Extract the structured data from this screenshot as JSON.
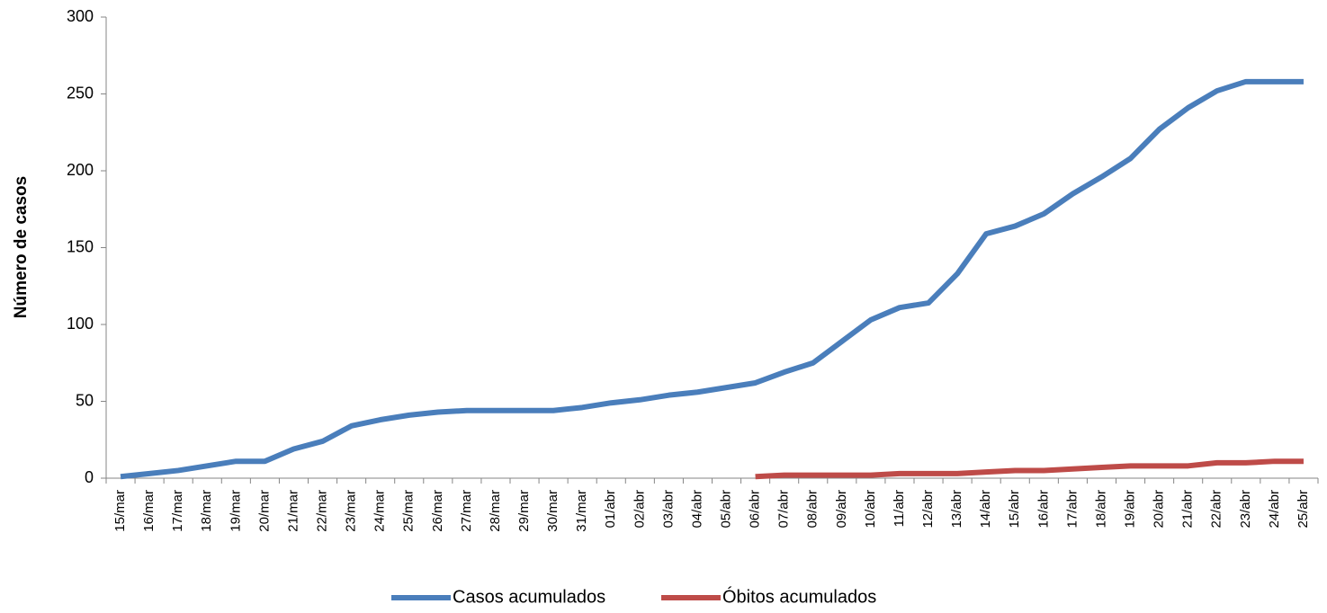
{
  "chart_data": {
    "type": "line",
    "y_label": "Número de casos",
    "categories": [
      "15/mar",
      "16/mar",
      "17/mar",
      "18/mar",
      "19/mar",
      "20/mar",
      "21/mar",
      "22/mar",
      "23/mar",
      "24/mar",
      "25/mar",
      "26/mar",
      "27/mar",
      "28/mar",
      "29/mar",
      "30/mar",
      "31/mar",
      "01/abr",
      "02/abr",
      "03/abr",
      "04/abr",
      "05/abr",
      "06/abr",
      "07/abr",
      "08/abr",
      "09/abr",
      "10/abr",
      "11/abr",
      "12/abr",
      "13/abr",
      "14/abr",
      "15/abr",
      "16/abr",
      "17/abr",
      "18/abr",
      "19/abr",
      "20/abr",
      "21/abr",
      "22/abr",
      "23/abr",
      "24/abr",
      "25/abr"
    ],
    "series": [
      {
        "name": "Casos acumulados",
        "color": "#4a7ebb",
        "values": [
          1,
          3,
          5,
          8,
          11,
          11,
          19,
          24,
          34,
          38,
          41,
          43,
          44,
          44,
          44,
          44,
          46,
          49,
          51,
          54,
          56,
          59,
          62,
          69,
          75,
          89,
          103,
          111,
          114,
          133,
          159,
          164,
          172,
          185,
          196,
          208,
          227,
          241,
          252,
          258,
          258,
          258
        ]
      },
      {
        "name": "Óbitos acumulados",
        "color": "#be4b48",
        "values": [
          null,
          null,
          null,
          null,
          null,
          null,
          null,
          null,
          null,
          null,
          null,
          null,
          null,
          null,
          null,
          null,
          null,
          null,
          null,
          null,
          null,
          null,
          1,
          2,
          2,
          2,
          2,
          3,
          3,
          3,
          4,
          5,
          5,
          6,
          7,
          8,
          8,
          8,
          10,
          10,
          11,
          11
        ]
      }
    ],
    "ylim": [
      0,
      300
    ],
    "yticks": [
      0,
      50,
      100,
      150,
      200,
      250,
      300
    ],
    "grid": false,
    "legend": "bottom"
  }
}
